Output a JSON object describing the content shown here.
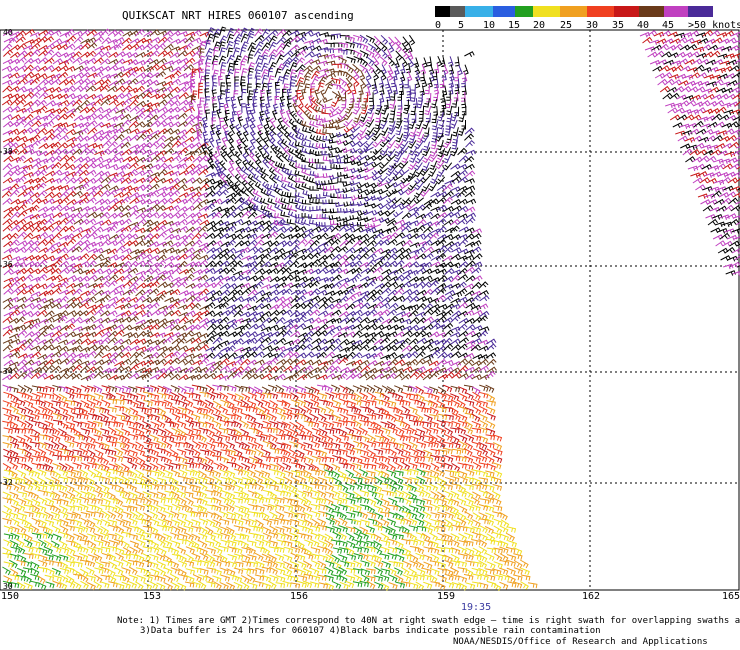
{
  "title": "QUIKSCAT NRT HIRES 060107 ascending",
  "legend": {
    "labels": [
      "0",
      "5",
      "10",
      "15",
      "20",
      "25",
      "30",
      "35",
      "40",
      "45",
      ">50 knots"
    ],
    "colors": [
      "#000000",
      "#5a5a5a",
      "#38b0e8",
      "#2a5ee0",
      "#22a020",
      "#f0e020",
      "#f0a020",
      "#f04020",
      "#c81818",
      "#6a3a1a",
      "#c040c0",
      "#4a2a98"
    ]
  },
  "axes": {
    "lon_ticks": [
      "150",
      "153",
      "156",
      "159",
      "162",
      "165"
    ],
    "lat_ticks": [
      "40",
      "38",
      "36",
      "34",
      "32",
      "30"
    ]
  },
  "swath_time": "19:35",
  "notes": {
    "line1": "Note: 1) Times are GMT 2)Times correspond to 40N at right swath edge – time is right swath for overlapping swaths at 40N",
    "line2": "3)Data buffer is 24 hrs for 060107 4)Black barbs indicate possible rain contamination",
    "line3": "NOAA/NESDIS/Office of Research and Applications"
  }
}
